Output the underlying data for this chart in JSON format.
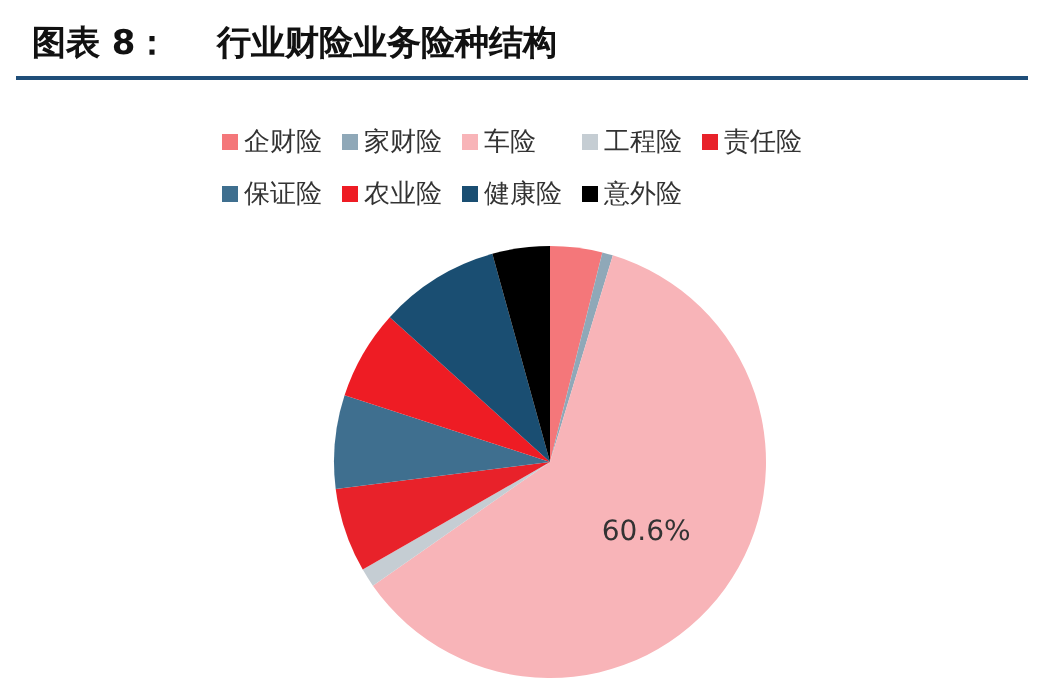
{
  "chart_data": {
    "type": "pie",
    "title": "图表 8：    行业财险业务险种结构",
    "categories": [
      "企财险",
      "家财险",
      "车险",
      "工程险",
      "责任险",
      "保证险",
      "农业险",
      "健康险",
      "意外险"
    ],
    "values": [
      3.9,
      0.8,
      60.6,
      1.4,
      6.3,
      7.0,
      6.7,
      9.0,
      4.3
    ],
    "colors": [
      "#f4777a",
      "#8fa8b8",
      "#f8b4b8",
      "#c5cdd3",
      "#e8222a",
      "#3f6f8f",
      "#ee1c24",
      "#1a4e72",
      "#000000"
    ],
    "value_labels": [
      null,
      null,
      "60.6%",
      null,
      null,
      null,
      null,
      null,
      null
    ],
    "legend": "top"
  }
}
